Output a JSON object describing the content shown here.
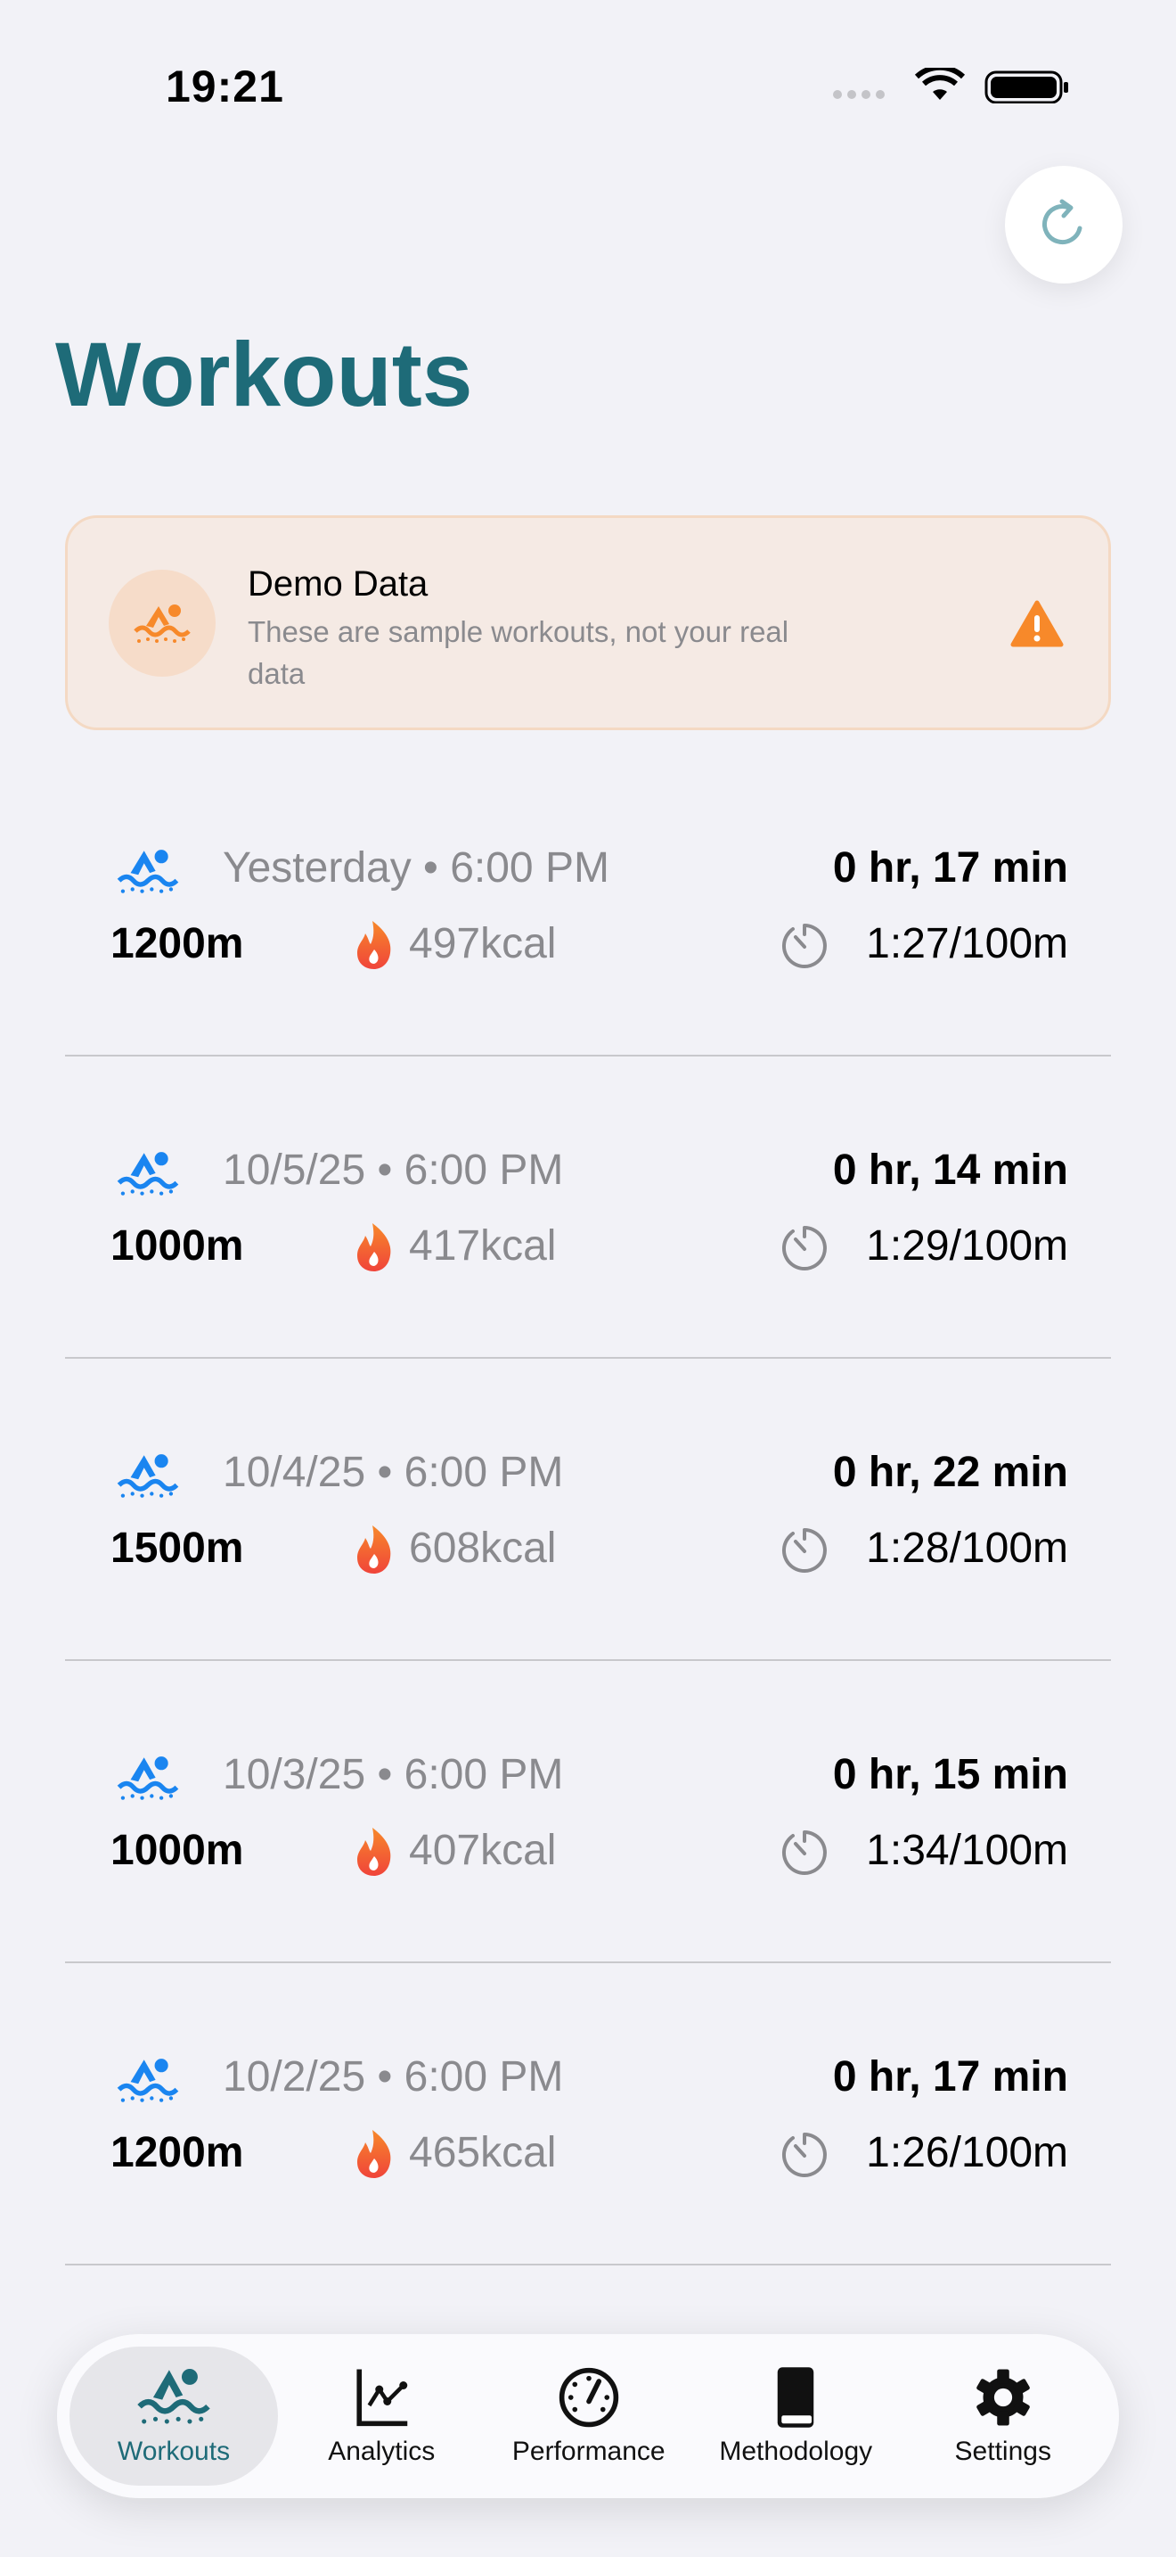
{
  "status_bar": {
    "time": "19:21"
  },
  "header": {
    "title": "Workouts",
    "refresh_icon": "arrow-clockwise-icon"
  },
  "banner": {
    "title": "Demo Data",
    "subtitle": "These are sample workouts, not your real data",
    "accent": "#f7892a"
  },
  "workouts": [
    {
      "date": "Yesterday • 6:00 PM",
      "duration": "0 hr, 17 min",
      "distance": "1200m",
      "calories": "497kcal",
      "pace": "1:27/100m"
    },
    {
      "date": "10/5/25 • 6:00 PM",
      "duration": "0 hr, 14 min",
      "distance": "1000m",
      "calories": "417kcal",
      "pace": "1:29/100m"
    },
    {
      "date": "10/4/25 • 6:00 PM",
      "duration": "0 hr, 22 min",
      "distance": "1500m",
      "calories": "608kcal",
      "pace": "1:28/100m"
    },
    {
      "date": "10/3/25 • 6:00 PM",
      "duration": "0 hr, 15 min",
      "distance": "1000m",
      "calories": "407kcal",
      "pace": "1:34/100m"
    },
    {
      "date": "10/2/25 • 6:00 PM",
      "duration": "0 hr, 17 min",
      "distance": "1200m",
      "calories": "465kcal",
      "pace": "1:26/100m"
    }
  ],
  "tabs": [
    {
      "label": "Workouts",
      "icon": "swimmer-icon",
      "selected": true
    },
    {
      "label": "Analytics",
      "icon": "chart-line-icon"
    },
    {
      "label": "Performance",
      "icon": "gauge-icon"
    },
    {
      "label": "Methodology",
      "icon": "book-icon"
    },
    {
      "label": "Settings",
      "icon": "gear-icon"
    }
  ],
  "colors": {
    "brand": "#1e6b78",
    "swim_blue": "#1a85f0",
    "background": "#f2f2f7"
  }
}
